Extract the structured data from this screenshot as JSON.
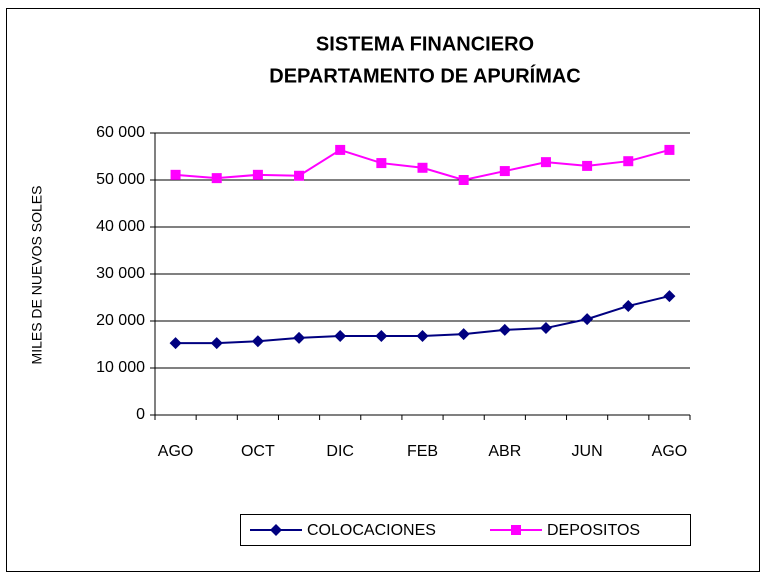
{
  "chart_data": {
    "type": "line",
    "title": [
      "SISTEMA FINANCIERO",
      "DEPARTAMENTO DE APURÍMAC"
    ],
    "y_label": "MILES DE NUEVOS SOLES",
    "categories": [
      "AGO",
      null,
      "OCT",
      null,
      "DIC",
      null,
      "FEB",
      null,
      "ABR",
      null,
      "JUN",
      null,
      "AGO"
    ],
    "series": [
      {
        "name": "COLOCACIONES",
        "color": "#000080",
        "marker": "diamond",
        "values": [
          15300,
          15300,
          15700,
          16400,
          16800,
          16800,
          16800,
          17200,
          18100,
          18500,
          20400,
          23200,
          25300
        ]
      },
      {
        "name": "DEPOSITOS",
        "color": "#ff00ff",
        "marker": "square",
        "values": [
          51100,
          50400,
          51100,
          50900,
          56400,
          53600,
          52600,
          50000,
          51900,
          53800,
          53000,
          54000,
          56400
        ]
      }
    ],
    "ylim": [
      0,
      60000
    ],
    "yticks": [
      0,
      {
        "value": 10000,
        "label": "10 000"
      },
      {
        "value": 20000,
        "label": "20 000"
      },
      {
        "value": 30000,
        "label": "30 000"
      },
      {
        "value": 40000,
        "label": "40 000"
      },
      {
        "value": 50000,
        "label": "50 000"
      },
      {
        "value": 60000,
        "label": "60 000"
      }
    ],
    "grid": true,
    "legend": "bottom"
  }
}
